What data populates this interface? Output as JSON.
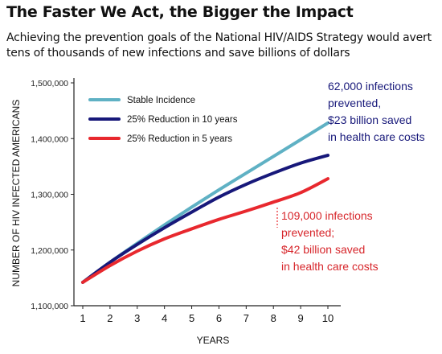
{
  "header": {
    "title": "The Faster We Act, the Bigger the Impact",
    "subtitle": "Achieving the prevention goals of the National HIV/AIDS Strategy would avert tens of thousands of new infections and save billions of dollars"
  },
  "chart_data": {
    "type": "line",
    "xlabel": "YEARS",
    "ylabel": "NUMBER OF HIV INFECTED AMERICANS",
    "x": [
      1,
      2,
      3,
      4,
      5,
      6,
      7,
      8,
      9,
      10
    ],
    "xlim": [
      1,
      10
    ],
    "ylim": [
      1100000,
      1500000
    ],
    "yticks": [
      1100000,
      1200000,
      1300000,
      1400000,
      1500000
    ],
    "ytick_labels": [
      "1,100,000",
      "1,200,000",
      "1,300,000",
      "1,400,000",
      "1,500,000"
    ],
    "xtick_labels": [
      "1",
      "2",
      "3",
      "4",
      "5",
      "6",
      "7",
      "8",
      "9",
      "10"
    ],
    "grid": false,
    "legend_position": "top-left",
    "series": [
      {
        "name": "Stable Incidence",
        "color": "#5fb1c4",
        "values": [
          1142000,
          1178000,
          1212000,
          1245000,
          1277000,
          1308000,
          1338000,
          1368000,
          1398000,
          1428000
        ]
      },
      {
        "name": "25% Reduction in 10 years",
        "color": "#17187a",
        "values": [
          1142000,
          1178000,
          1210000,
          1240000,
          1268000,
          1295000,
          1318000,
          1338000,
          1356000,
          1370000
        ]
      },
      {
        "name": "25% Reduction in 5 years",
        "color": "#e8282e",
        "values": [
          1142000,
          1172000,
          1198000,
          1220000,
          1238000,
          1255000,
          1270000,
          1286000,
          1303000,
          1328000
        ]
      }
    ],
    "annotations": [
      {
        "lines": [
          "62,000 infections",
          "prevented,",
          "$23 billion saved",
          "in health care costs"
        ],
        "color": "#17187a"
      },
      {
        "lines": [
          "109,000 infections",
          "prevented;",
          "$42 billion saved",
          "in health care costs"
        ],
        "color": "#d7262b"
      }
    ]
  }
}
